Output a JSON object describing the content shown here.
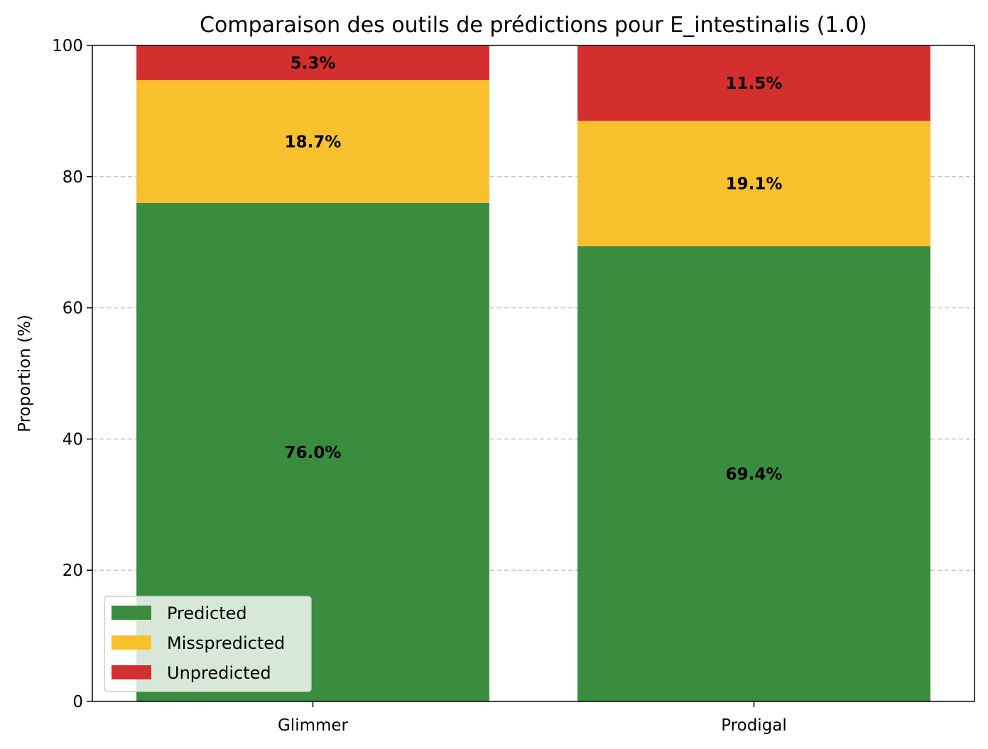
{
  "chart_data": {
    "type": "bar",
    "stacked": true,
    "title": "Comparaison des outils de prédictions pour E_intestinalis (1.0)",
    "xlabel": "",
    "ylabel": "Proportion (%)",
    "ylim": [
      0,
      100
    ],
    "yticks": [
      0,
      20,
      40,
      60,
      80,
      100
    ],
    "categories": [
      "Glimmer",
      "Prodigal"
    ],
    "series": [
      {
        "name": "Predicted",
        "color": "#3a8c3e",
        "values": [
          76.0,
          69.4
        ],
        "labels": [
          "76.0%",
          "69.4%"
        ]
      },
      {
        "name": "Misspredicted",
        "color": "#f9c02e",
        "values": [
          18.7,
          19.1
        ],
        "labels": [
          "18.7%",
          "19.1%"
        ]
      },
      {
        "name": "Unpredicted",
        "color": "#d32f2f",
        "values": [
          5.3,
          11.5
        ],
        "labels": [
          "5.3%",
          "11.5%"
        ]
      }
    ],
    "grid": "y-dashed",
    "legend_position": "lower-left"
  }
}
